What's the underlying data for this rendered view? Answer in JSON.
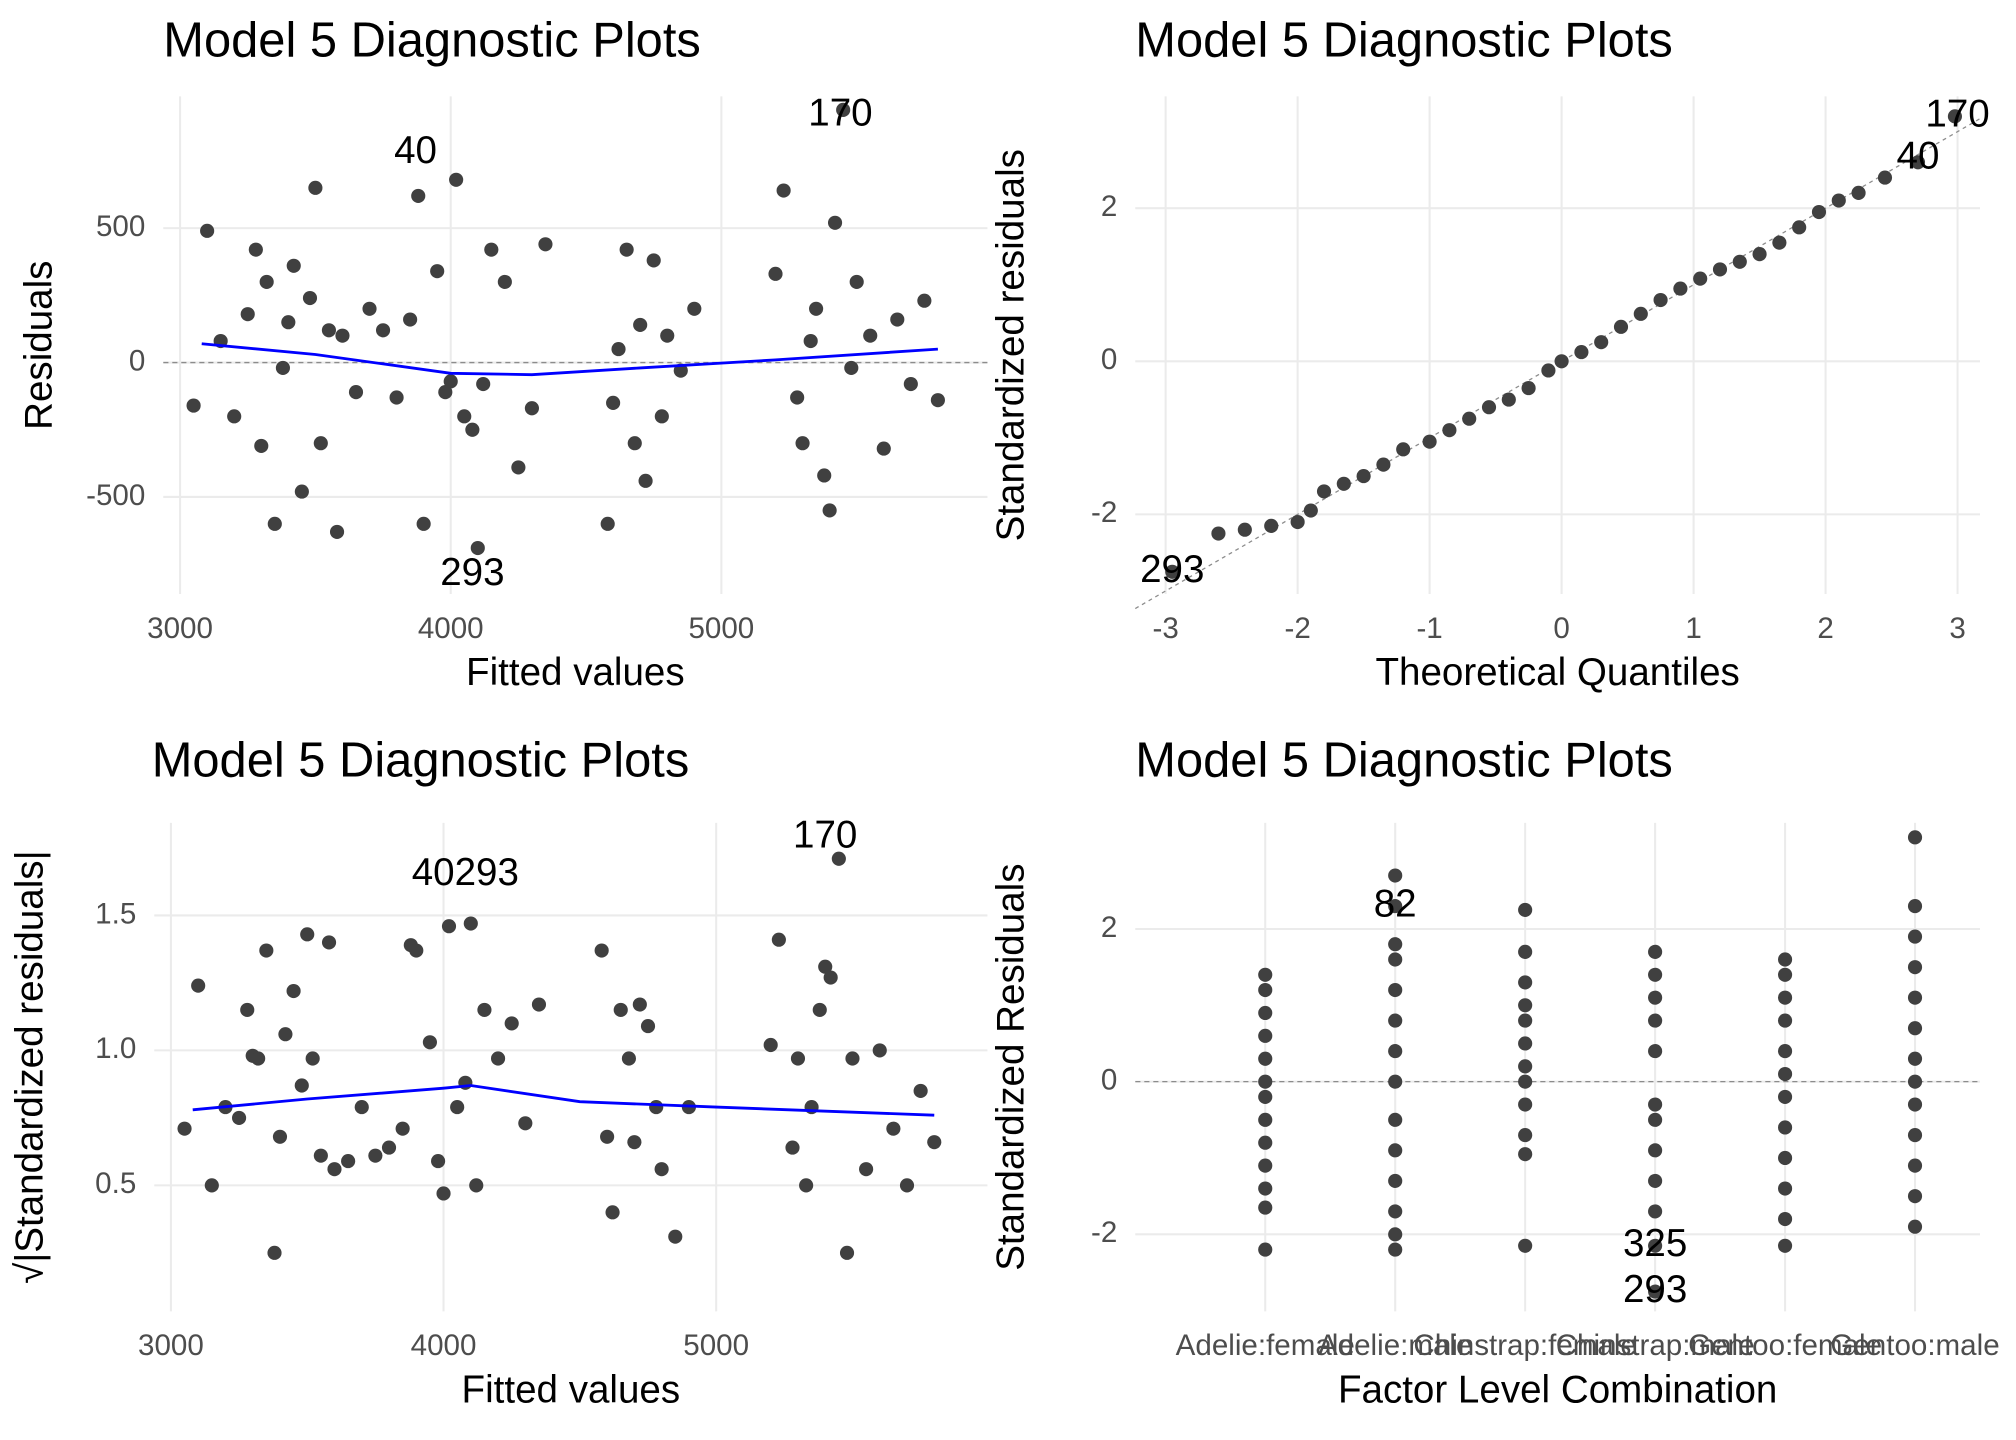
{
  "chart_data": [
    {
      "type": "scatter",
      "title": "Model 5 Diagnostic Plots",
      "x_label": "Fitted values",
      "y_label": "Residuals",
      "xlim": [
        2938,
        5983
      ],
      "ylim": [
        -861,
        990
      ],
      "xticks": [
        3000,
        4000,
        5000
      ],
      "yticks": [
        -500,
        0,
        500
      ],
      "grid": true,
      "color": "#404040",
      "hline": 0,
      "x": [
        3050,
        3100,
        3150,
        3200,
        3250,
        3280,
        3300,
        3320,
        3350,
        3380,
        3400,
        3420,
        3450,
        3480,
        3500,
        3520,
        3550,
        3580,
        3600,
        3650,
        3700,
        3750,
        3800,
        3850,
        3880,
        3900,
        3950,
        3980,
        4000,
        4020,
        4050,
        4080,
        4100,
        4120,
        4150,
        4200,
        4250,
        4300,
        4350,
        4580,
        4600,
        4620,
        4650,
        4680,
        4700,
        4720,
        4750,
        4780,
        4800,
        4850,
        4900,
        5200,
        5230,
        5280,
        5300,
        5330,
        5350,
        5380,
        5400,
        5420,
        5450,
        5480,
        5500,
        5550,
        5600,
        5650,
        5700,
        5750,
        5800
      ],
      "values": [
        -160,
        490,
        80,
        -200,
        180,
        420,
        -310,
        300,
        -600,
        -20,
        150,
        360,
        -480,
        240,
        650,
        -300,
        120,
        -630,
        100,
        -110,
        200,
        120,
        -130,
        160,
        620,
        -600,
        340,
        -110,
        -70,
        680,
        -200,
        -250,
        -690,
        -80,
        420,
        300,
        -390,
        -170,
        440,
        -600,
        -150,
        50,
        420,
        -300,
        140,
        -440,
        380,
        -200,
        100,
        -30,
        200,
        330,
        640,
        -130,
        -300,
        80,
        200,
        -420,
        -550,
        520,
        940,
        -20,
        300,
        100,
        -320,
        160,
        -80,
        230,
        -140
      ],
      "smooth": {
        "color": "#0000ff",
        "x": [
          3080,
          3500,
          4000,
          4300,
          4700,
          5200,
          5800
        ],
        "values": [
          70,
          30,
          -40,
          -45,
          -20,
          10,
          50
        ]
      },
      "annotations": [
        {
          "text": "40",
          "x": 3870,
          "y": 780
        },
        {
          "text": "170",
          "x": 5440,
          "y": 920
        },
        {
          "text": "293",
          "x": 4080,
          "y": -790
        }
      ]
    },
    {
      "type": "qq",
      "title": "Model 5 Diagnostic Plots",
      "x_label": "Theoretical Quantiles",
      "y_label": "Standardized residuals",
      "xlim": [
        -3.23,
        3.17
      ],
      "ylim": [
        -3.04,
        3.46
      ],
      "xticks": [
        -3,
        -2,
        -1,
        0,
        1,
        2,
        3
      ],
      "yticks": [
        -2,
        0,
        2
      ],
      "grid": true,
      "color": "#404040",
      "reference_line": {
        "intercept": 0,
        "slope": 1
      },
      "x": [
        -2.95,
        -2.6,
        -2.4,
        -2.2,
        -2.0,
        -1.9,
        -1.8,
        -1.65,
        -1.5,
        -1.35,
        -1.2,
        -1.0,
        -0.85,
        -0.7,
        -0.55,
        -0.4,
        -0.25,
        -0.1,
        0,
        0.15,
        0.3,
        0.45,
        0.6,
        0.75,
        0.9,
        1.05,
        1.2,
        1.35,
        1.5,
        1.65,
        1.8,
        1.95,
        2.1,
        2.25,
        2.45,
        2.7,
        2.98
      ],
      "values": [
        -2.75,
        -2.25,
        -2.2,
        -2.15,
        -2.1,
        -1.95,
        -1.7,
        -1.6,
        -1.5,
        -1.35,
        -1.15,
        -1.05,
        -0.9,
        -0.75,
        -0.6,
        -0.5,
        -0.35,
        -0.12,
        0,
        0.12,
        0.25,
        0.45,
        0.62,
        0.8,
        0.95,
        1.08,
        1.2,
        1.3,
        1.4,
        1.55,
        1.75,
        1.95,
        2.1,
        2.2,
        2.4,
        2.6,
        3.2
      ],
      "annotations": [
        {
          "text": "170",
          "x": 3.0,
          "y": 3.2
        },
        {
          "text": "40",
          "x": 2.7,
          "y": 2.65
        },
        {
          "text": "293",
          "x": -2.95,
          "y": -2.75
        }
      ]
    },
    {
      "type": "scatter",
      "title": "Model 5 Diagnostic Plots",
      "x_label": "Fitted values",
      "y_label": "√|Standardized residuals|",
      "xlim": [
        2939,
        5995
      ],
      "ylim": [
        0.033,
        1.843
      ],
      "xticks": [
        3000,
        4000,
        5000
      ],
      "yticks": [
        0.5,
        {
          "value": 1,
          "label": "1.0"
        },
        1.5
      ],
      "grid": true,
      "color": "#404040",
      "x": [
        3050,
        3100,
        3150,
        3200,
        3250,
        3280,
        3300,
        3320,
        3350,
        3380,
        3400,
        3420,
        3450,
        3480,
        3500,
        3520,
        3550,
        3580,
        3600,
        3650,
        3700,
        3750,
        3800,
        3850,
        3880,
        3900,
        3950,
        3980,
        4000,
        4020,
        4050,
        4080,
        4100,
        4120,
        4150,
        4200,
        4250,
        4300,
        4350,
        4580,
        4600,
        4620,
        4650,
        4680,
        4700,
        4720,
        4750,
        4780,
        4800,
        4850,
        4900,
        5200,
        5230,
        5280,
        5300,
        5330,
        5350,
        5380,
        5400,
        5420,
        5450,
        5480,
        5500,
        5550,
        5600,
        5650,
        5700,
        5750,
        5800
      ],
      "values": [
        0.71,
        1.24,
        0.5,
        0.79,
        0.75,
        1.15,
        0.98,
        0.97,
        1.37,
        0.25,
        0.68,
        1.06,
        1.22,
        0.87,
        1.43,
        0.97,
        0.61,
        1.4,
        0.56,
        0.59,
        0.79,
        0.61,
        0.64,
        0.71,
        1.39,
        1.37,
        1.03,
        0.59,
        0.47,
        1.46,
        0.79,
        0.88,
        1.47,
        0.5,
        1.15,
        0.97,
        1.1,
        0.73,
        1.17,
        1.37,
        0.68,
        0.4,
        1.15,
        0.97,
        0.66,
        1.17,
        1.09,
        0.79,
        0.56,
        0.31,
        0.79,
        1.02,
        1.41,
        0.64,
        0.97,
        0.5,
        0.79,
        1.15,
        1.31,
        1.27,
        1.71,
        0.25,
        0.97,
        0.56,
        1.0,
        0.71,
        0.5,
        0.85,
        0.66
      ],
      "smooth": {
        "color": "#0000ff",
        "x": [
          3080,
          3500,
          4000,
          4100,
          4500,
          5000,
          5800
        ],
        "values": [
          0.78,
          0.82,
          0.86,
          0.87,
          0.81,
          0.79,
          0.76
        ]
      },
      "annotations": [
        {
          "text": "40293",
          "x": 4080,
          "y": 1.65
        },
        {
          "text": "170",
          "x": 5400,
          "y": 1.79
        }
      ]
    },
    {
      "type": "strip",
      "title": "Model 5 Diagnostic Plots",
      "x_label": "Factor Level Combination",
      "y_label": "Standardized Residuals",
      "ylim": [
        -3.01,
        3.39
      ],
      "yticks": [
        -2,
        0,
        2
      ],
      "grid": true,
      "color": "#404040",
      "hline": 0,
      "categories": [
        "Adelie:female",
        "Adelie:male",
        "Chinstrap:female",
        "Chinstrap:male",
        "Gentoo:female",
        "Gentoo:male"
      ],
      "values": [
        [
          -2.2,
          -1.65,
          -1.4,
          -1.1,
          -0.8,
          -0.5,
          -0.2,
          0,
          0.3,
          0.6,
          0.9,
          1.2,
          1.4
        ],
        [
          -2.2,
          -2.0,
          -1.7,
          -1.3,
          -0.9,
          -0.5,
          0,
          0.4,
          0.8,
          1.2,
          1.6,
          1.8,
          2.3,
          2.7
        ],
        [
          -2.15,
          -0.95,
          -0.7,
          -0.3,
          0,
          0.2,
          0.5,
          0.8,
          1.0,
          1.3,
          1.7,
          2.25
        ],
        [
          -2.75,
          -2.15,
          -1.7,
          -1.3,
          -0.9,
          -0.5,
          -0.3,
          0.4,
          0.8,
          1.1,
          1.4,
          1.7
        ],
        [
          -2.15,
          -1.8,
          -1.4,
          -1.0,
          -0.6,
          -0.2,
          0.1,
          0.4,
          0.8,
          1.1,
          1.4,
          1.6
        ],
        [
          -1.9,
          -1.5,
          -1.1,
          -0.7,
          -0.3,
          0,
          0.3,
          0.7,
          1.1,
          1.5,
          1.9,
          2.3,
          3.2
        ]
      ],
      "annotations": [
        {
          "text": "82",
          "x": "Adelie:male",
          "y": 2.3
        },
        {
          "text": "325",
          "x": "Chinstrap:male",
          "y": -2.15
        },
        {
          "text": "293",
          "x": "Chinstrap:male",
          "y": -2.75
        }
      ]
    }
  ]
}
